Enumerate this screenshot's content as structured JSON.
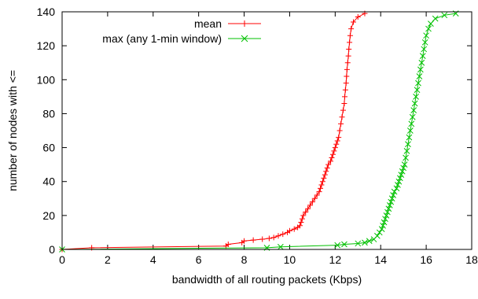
{
  "chart_data": {
    "type": "line",
    "xlabel": "bandwidth of all routing packets (Kbps)",
    "ylabel": "number of nodes with <=",
    "xlim": [
      0,
      18
    ],
    "ylim": [
      0,
      140
    ],
    "xticks": [
      0,
      2,
      4,
      6,
      8,
      10,
      12,
      14,
      16,
      18
    ],
    "yticks": [
      0,
      20,
      40,
      60,
      80,
      100,
      120,
      140
    ],
    "grid": false,
    "legend_position": "top-right",
    "series": [
      {
        "name": "mean",
        "color": "#ff0000",
        "marker": "plus",
        "points": [
          [
            0,
            0
          ],
          [
            1.3,
            1
          ],
          [
            7.2,
            2
          ],
          [
            7.3,
            3
          ],
          [
            7.9,
            4
          ],
          [
            8.0,
            5
          ],
          [
            8.4,
            5.5
          ],
          [
            8.8,
            6
          ],
          [
            9.1,
            6.5
          ],
          [
            9.3,
            7
          ],
          [
            9.5,
            8
          ],
          [
            9.7,
            9
          ],
          [
            9.9,
            10
          ],
          [
            10.0,
            11
          ],
          [
            10.2,
            12
          ],
          [
            10.35,
            13
          ],
          [
            10.45,
            14
          ],
          [
            10.5,
            16
          ],
          [
            10.55,
            18
          ],
          [
            10.6,
            20
          ],
          [
            10.7,
            22
          ],
          [
            10.8,
            24
          ],
          [
            10.9,
            26
          ],
          [
            11.0,
            28
          ],
          [
            11.1,
            30
          ],
          [
            11.2,
            32
          ],
          [
            11.3,
            34
          ],
          [
            11.35,
            36
          ],
          [
            11.4,
            38
          ],
          [
            11.45,
            40
          ],
          [
            11.5,
            42
          ],
          [
            11.55,
            44
          ],
          [
            11.6,
            46
          ],
          [
            11.65,
            48
          ],
          [
            11.7,
            50
          ],
          [
            11.8,
            52
          ],
          [
            11.85,
            54
          ],
          [
            11.9,
            56
          ],
          [
            11.95,
            58
          ],
          [
            12.0,
            60
          ],
          [
            12.05,
            62
          ],
          [
            12.1,
            64
          ],
          [
            12.15,
            66
          ],
          [
            12.2,
            70
          ],
          [
            12.25,
            74
          ],
          [
            12.3,
            78
          ],
          [
            12.35,
            82
          ],
          [
            12.4,
            86
          ],
          [
            12.42,
            90
          ],
          [
            12.45,
            94
          ],
          [
            12.48,
            98
          ],
          [
            12.5,
            102
          ],
          [
            12.52,
            106
          ],
          [
            12.55,
            110
          ],
          [
            12.58,
            114
          ],
          [
            12.6,
            118
          ],
          [
            12.63,
            122
          ],
          [
            12.66,
            126
          ],
          [
            12.7,
            130
          ],
          [
            12.8,
            134
          ],
          [
            13.0,
            137
          ],
          [
            13.3,
            139
          ]
        ]
      },
      {
        "name": "max (any 1-min window)",
        "color": "#00c000",
        "marker": "x",
        "points": [
          [
            0,
            0
          ],
          [
            9.0,
            1
          ],
          [
            9.6,
            1.5
          ],
          [
            12.1,
            2.5
          ],
          [
            12.4,
            3
          ],
          [
            13.0,
            3.5
          ],
          [
            13.3,
            4
          ],
          [
            13.5,
            5
          ],
          [
            13.7,
            6
          ],
          [
            13.85,
            8
          ],
          [
            13.95,
            10
          ],
          [
            14.05,
            12
          ],
          [
            14.1,
            14
          ],
          [
            14.15,
            16
          ],
          [
            14.2,
            18
          ],
          [
            14.25,
            20
          ],
          [
            14.3,
            22
          ],
          [
            14.35,
            24
          ],
          [
            14.4,
            26
          ],
          [
            14.45,
            28
          ],
          [
            14.5,
            30
          ],
          [
            14.55,
            32
          ],
          [
            14.6,
            34
          ],
          [
            14.7,
            36
          ],
          [
            14.75,
            38
          ],
          [
            14.8,
            40
          ],
          [
            14.85,
            42
          ],
          [
            14.9,
            44
          ],
          [
            14.95,
            46
          ],
          [
            15.0,
            48
          ],
          [
            15.05,
            50
          ],
          [
            15.1,
            54
          ],
          [
            15.15,
            58
          ],
          [
            15.2,
            62
          ],
          [
            15.25,
            66
          ],
          [
            15.3,
            70
          ],
          [
            15.35,
            74
          ],
          [
            15.4,
            78
          ],
          [
            15.45,
            82
          ],
          [
            15.5,
            86
          ],
          [
            15.55,
            90
          ],
          [
            15.6,
            94
          ],
          [
            15.65,
            98
          ],
          [
            15.7,
            102
          ],
          [
            15.75,
            106
          ],
          [
            15.8,
            110
          ],
          [
            15.85,
            114
          ],
          [
            15.9,
            118
          ],
          [
            15.95,
            122
          ],
          [
            16.0,
            126
          ],
          [
            16.1,
            130
          ],
          [
            16.2,
            133
          ],
          [
            16.4,
            136
          ],
          [
            16.8,
            138
          ],
          [
            17.3,
            139
          ]
        ]
      }
    ]
  }
}
